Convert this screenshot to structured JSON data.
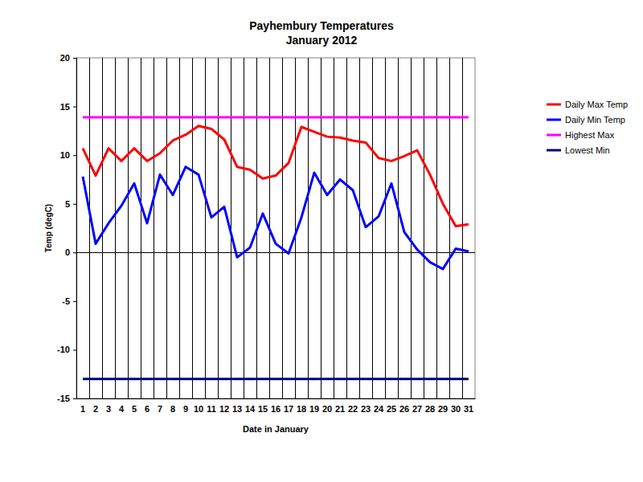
{
  "chart_data": {
    "type": "line",
    "title": "Payhembury Temperatures",
    "subtitle": "January 2012",
    "x_label": "Date in January",
    "y_label": "Temp (degC)",
    "categories": [
      "1",
      "2",
      "3",
      "4",
      "5",
      "6",
      "7",
      "8",
      "9",
      "10",
      "11",
      "12",
      "13",
      "14",
      "15",
      "16",
      "17",
      "18",
      "19",
      "20",
      "21",
      "22",
      "23",
      "24",
      "25",
      "26",
      "27",
      "28",
      "29",
      "30",
      "31"
    ],
    "series": [
      {
        "name": "Daily Max Temp",
        "color": "#ff0000",
        "values": [
          10.7,
          7.9,
          10.7,
          9.4,
          10.7,
          9.4,
          10.2,
          11.5,
          12.1,
          13.0,
          12.7,
          11.6,
          8.8,
          8.5,
          7.6,
          7.9,
          9.2,
          12.9,
          12.4,
          11.9,
          11.8,
          11.5,
          11.3,
          9.7,
          9.4,
          9.9,
          10.5,
          8.0,
          5.0,
          2.7,
          2.9
        ]
      },
      {
        "name": "Daily Min Temp",
        "color": "#0000ff",
        "values": [
          7.8,
          0.9,
          3.0,
          4.8,
          7.1,
          3.0,
          8.0,
          5.9,
          8.8,
          8.0,
          3.6,
          4.7,
          -0.5,
          0.5,
          4.0,
          0.9,
          -0.1,
          3.6,
          8.2,
          5.9,
          7.5,
          6.4,
          2.6,
          3.7,
          7.1,
          2.1,
          0.3,
          -1.0,
          -1.7,
          0.4,
          0.1
        ]
      },
      {
        "name": "Highest Max",
        "color": "#ff00ff",
        "values": [
          13.9,
          13.9,
          13.9,
          13.9,
          13.9,
          13.9,
          13.9,
          13.9,
          13.9,
          13.9,
          13.9,
          13.9,
          13.9,
          13.9,
          13.9,
          13.9,
          13.9,
          13.9,
          13.9,
          13.9,
          13.9,
          13.9,
          13.9,
          13.9,
          13.9,
          13.9,
          13.9,
          13.9,
          13.9,
          13.9,
          13.9
        ]
      },
      {
        "name": "Lowest Min",
        "color": "#000080",
        "values": [
          -13.0,
          -13.0,
          -13.0,
          -13.0,
          -13.0,
          -13.0,
          -13.0,
          -13.0,
          -13.0,
          -13.0,
          -13.0,
          -13.0,
          -13.0,
          -13.0,
          -13.0,
          -13.0,
          -13.0,
          -13.0,
          -13.0,
          -13.0,
          -13.0,
          -13.0,
          -13.0,
          -13.0,
          -13.0,
          -13.0,
          -13.0,
          -13.0,
          -13.0,
          -13.0,
          -13.0
        ]
      }
    ],
    "ylim": [
      -15,
      20
    ],
    "yticks": [
      -15,
      -10,
      -5,
      0,
      5,
      10,
      15,
      20
    ],
    "grid": true,
    "legend": "right"
  }
}
